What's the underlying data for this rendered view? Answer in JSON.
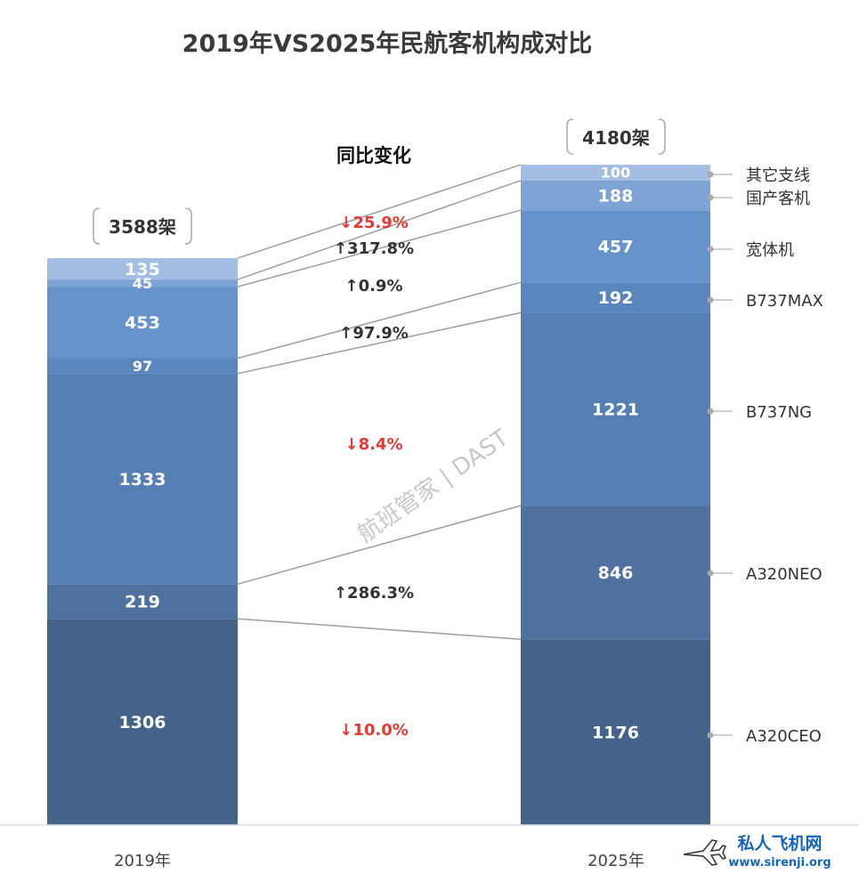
{
  "chart_data": {
    "type": "bar",
    "stacked": true,
    "title": "2019年VS2025年民航客机构成对比",
    "subtitle": "同比变化",
    "categories": [
      "2019年",
      "2025年"
    ],
    "totals": [
      "3588架",
      "4180架"
    ],
    "series": [
      {
        "name": "A320CEO",
        "values": [
          1306,
          1176
        ],
        "color": "#43638a",
        "change": "↓10.0%",
        "direction": "down"
      },
      {
        "name": "A320NEO",
        "values": [
          219,
          846
        ],
        "color": "#4e71a0",
        "change": "↑286.3%",
        "direction": "up"
      },
      {
        "name": "B737NG",
        "values": [
          1333,
          1221
        ],
        "color": "#5680b3",
        "change": "↓8.4%",
        "direction": "down"
      },
      {
        "name": "B737MAX",
        "values": [
          97,
          192
        ],
        "color": "#5b86bd",
        "change": "↑97.9%",
        "direction": "up"
      },
      {
        "name": "宽体机",
        "values": [
          453,
          457
        ],
        "color": "#6693ca",
        "change": "↑0.9%",
        "direction": "up"
      },
      {
        "name": "国产客机",
        "values": [
          45,
          188
        ],
        "color": "#7ea4d6",
        "change": "↑317.8%",
        "direction": "up"
      },
      {
        "name": "其它支线",
        "values": [
          135,
          100
        ],
        "color": "#a4bde2",
        "change": "↓25.9%",
        "direction": "down"
      }
    ],
    "legend_position": "right",
    "grid": false,
    "colors": {
      "up": "#333333",
      "down": "#e53935"
    }
  },
  "watermark": "航班管家 | DAST",
  "site": {
    "name": "私人飞机网",
    "url": "www.sirenji.org"
  }
}
